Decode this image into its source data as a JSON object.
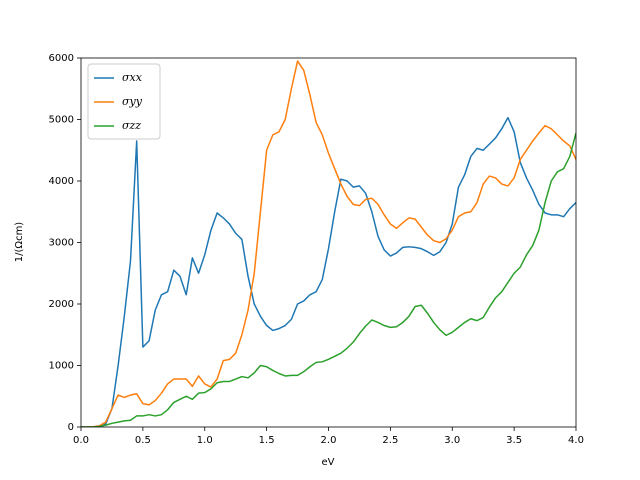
{
  "chart_data": {
    "type": "line",
    "xlabel": "eV",
    "ylabel": "1/(Ωcm)",
    "x": [
      0,
      0.05,
      0.1,
      0.15,
      0.2,
      0.25,
      0.3,
      0.35,
      0.4,
      0.45,
      0.5,
      0.55,
      0.6,
      0.65,
      0.7,
      0.75,
      0.8,
      0.85,
      0.9,
      0.95,
      1.0,
      1.05,
      1.1,
      1.15,
      1.2,
      1.25,
      1.3,
      1.35,
      1.4,
      1.45,
      1.5,
      1.55,
      1.6,
      1.65,
      1.7,
      1.75,
      1.8,
      1.85,
      1.9,
      1.95,
      2.0,
      2.05,
      2.1,
      2.15,
      2.2,
      2.25,
      2.3,
      2.35,
      2.4,
      2.45,
      2.5,
      2.55,
      2.6,
      2.65,
      2.7,
      2.75,
      2.8,
      2.85,
      2.9,
      2.95,
      3.0,
      3.05,
      3.1,
      3.15,
      3.2,
      3.25,
      3.3,
      3.35,
      3.4,
      3.45,
      3.5,
      3.55,
      3.6,
      3.65,
      3.7,
      3.75,
      3.8,
      3.85,
      3.9,
      3.95,
      4.0
    ],
    "series": [
      {
        "name": "σxx",
        "color": "#1f77b4",
        "values": [
          0,
          0,
          0,
          10,
          50,
          300,
          1000,
          1800,
          2700,
          4650,
          1300,
          1400,
          1900,
          2150,
          2200,
          2550,
          2450,
          2150,
          2750,
          2500,
          2800,
          3200,
          3480,
          3400,
          3300,
          3150,
          3050,
          2450,
          2000,
          1800,
          1650,
          1570,
          1600,
          1650,
          1750,
          2000,
          2050,
          2150,
          2200,
          2400,
          2900,
          3500,
          4030,
          4000,
          3900,
          3920,
          3800,
          3500,
          3100,
          2880,
          2780,
          2830,
          2920,
          2930,
          2920,
          2900,
          2850,
          2790,
          2850,
          3000,
          3300,
          3900,
          4100,
          4400,
          4530,
          4500,
          4600,
          4700,
          4850,
          5030,
          4800,
          4300,
          4050,
          3850,
          3620,
          3480,
          3450,
          3450,
          3420,
          3550,
          3650
        ]
      },
      {
        "name": "σyy",
        "color": "#ff7f0e",
        "values": [
          0,
          0,
          5,
          20,
          80,
          300,
          520,
          480,
          520,
          540,
          380,
          360,
          430,
          550,
          700,
          780,
          780,
          780,
          660,
          830,
          700,
          650,
          780,
          1080,
          1100,
          1200,
          1500,
          1900,
          2500,
          3500,
          4500,
          4750,
          4800,
          5000,
          5500,
          5950,
          5800,
          5400,
          4950,
          4750,
          4450,
          4200,
          3950,
          3750,
          3620,
          3600,
          3700,
          3720,
          3620,
          3450,
          3300,
          3230,
          3320,
          3400,
          3380,
          3250,
          3120,
          3030,
          3000,
          3060,
          3200,
          3420,
          3480,
          3500,
          3650,
          3950,
          4080,
          4050,
          3950,
          3920,
          4050,
          4350,
          4500,
          4650,
          4780,
          4900,
          4850,
          4750,
          4650,
          4570,
          4350
        ]
      },
      {
        "name": "σzz",
        "color": "#2ca02c",
        "values": [
          0,
          0,
          0,
          10,
          30,
          60,
          80,
          100,
          110,
          180,
          180,
          200,
          180,
          200,
          280,
          400,
          450,
          500,
          450,
          550,
          560,
          620,
          720,
          740,
          740,
          780,
          820,
          800,
          880,
          1000,
          980,
          920,
          870,
          830,
          840,
          840,
          900,
          980,
          1050,
          1060,
          1100,
          1150,
          1200,
          1280,
          1380,
          1520,
          1640,
          1740,
          1700,
          1650,
          1620,
          1630,
          1700,
          1800,
          1960,
          1980,
          1850,
          1700,
          1580,
          1490,
          1540,
          1620,
          1700,
          1760,
          1730,
          1780,
          1950,
          2100,
          2200,
          2350,
          2500,
          2600,
          2800,
          2950,
          3200,
          3650,
          4000,
          4150,
          4200,
          4400,
          4780
        ]
      }
    ],
    "xlim": [
      0,
      4
    ],
    "xticks": [
      {
        "value": 0,
        "label": "0.0"
      },
      {
        "value": 0.5,
        "label": "0.5"
      },
      {
        "value": 1,
        "label": "1.0"
      },
      {
        "value": 1.5,
        "label": "1.5"
      },
      {
        "value": 2,
        "label": "2.0"
      },
      {
        "value": 2.5,
        "label": "2.5"
      },
      {
        "value": 3,
        "label": "3.0"
      },
      {
        "value": 3.5,
        "label": "3.5"
      },
      {
        "value": 4,
        "label": "4.0"
      }
    ],
    "ylim": [
      0,
      6000
    ],
    "yticks": [
      0,
      1000,
      2000,
      3000,
      4000,
      5000,
      6000
    ],
    "legend": "upper left",
    "grid": false
  }
}
